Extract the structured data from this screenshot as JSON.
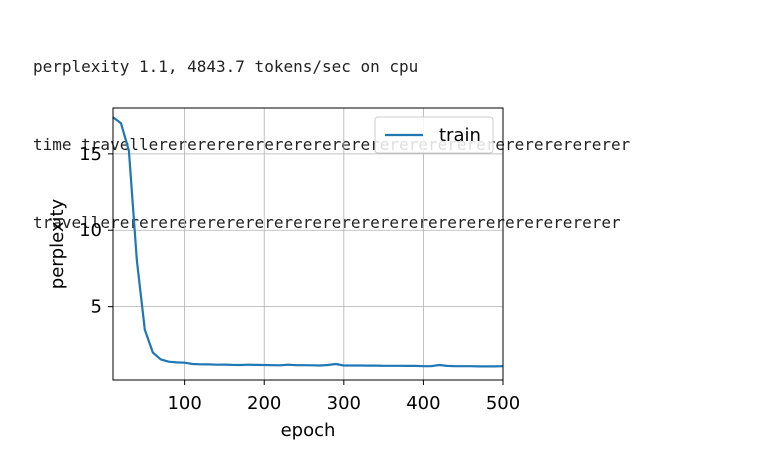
{
  "console": {
    "lines": [
      "perplexity 1.1, 4843.7 tokens/sec on cpu",
      "time travellererererererererererererererererererererererererer",
      "travellererererererererererererererererererererererererererer"
    ]
  },
  "chart_data": {
    "type": "line",
    "title": "",
    "xlabel": "epoch",
    "ylabel": "perplexity",
    "xlim": [
      10,
      500
    ],
    "ylim": [
      0.2,
      18
    ],
    "xticks": [
      100,
      200,
      300,
      400,
      500
    ],
    "yticks": [
      5,
      10,
      15
    ],
    "grid": true,
    "legend": {
      "placement": "top-right",
      "entries": [
        "train"
      ]
    },
    "series": [
      {
        "name": "train",
        "color": "#1f77b4",
        "x": [
          10,
          20,
          30,
          40,
          50,
          60,
          70,
          80,
          90,
          100,
          110,
          120,
          130,
          140,
          150,
          160,
          170,
          180,
          190,
          200,
          210,
          220,
          230,
          240,
          250,
          260,
          270,
          280,
          290,
          300,
          310,
          320,
          330,
          340,
          350,
          360,
          370,
          380,
          390,
          400,
          410,
          420,
          430,
          440,
          450,
          460,
          470,
          480,
          490,
          500
        ],
        "y": [
          17.4,
          17.0,
          15.2,
          8.0,
          3.5,
          2.0,
          1.55,
          1.4,
          1.35,
          1.33,
          1.25,
          1.23,
          1.22,
          1.2,
          1.21,
          1.19,
          1.18,
          1.2,
          1.19,
          1.18,
          1.17,
          1.16,
          1.2,
          1.17,
          1.17,
          1.16,
          1.15,
          1.18,
          1.25,
          1.15,
          1.15,
          1.15,
          1.14,
          1.14,
          1.13,
          1.13,
          1.13,
          1.12,
          1.12,
          1.1,
          1.11,
          1.18,
          1.12,
          1.1,
          1.1,
          1.1,
          1.09,
          1.09,
          1.09,
          1.1
        ]
      }
    ]
  }
}
